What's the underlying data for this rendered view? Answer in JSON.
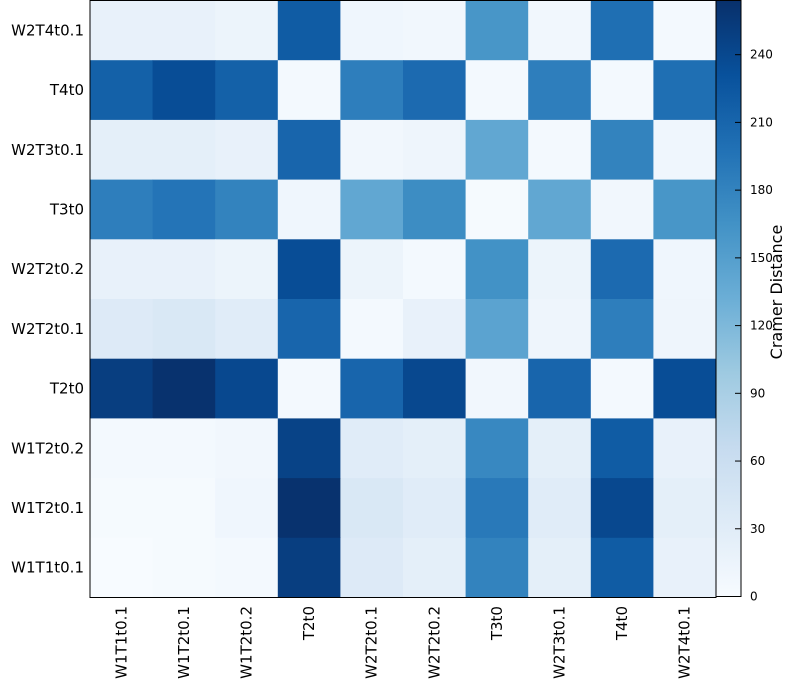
{
  "chart_data": {
    "type": "heatmap",
    "rows": [
      "W2T4t0.1",
      "T4t0",
      "W2T3t0.1",
      "T3t0",
      "W2T2t0.2",
      "W2T2t0.1",
      "T2t0",
      "W1T2t0.2",
      "W1T2t0.1",
      "W1T1t0.1"
    ],
    "columns": [
      "W1T1t0.1",
      "W1T2t0.1",
      "W1T2t0.2",
      "T2t0",
      "W2T2t0.1",
      "W2T2t0.2",
      "T3t0",
      "W2T3t0.1",
      "T4t0",
      "W2T4t0.1"
    ],
    "values": [
      [
        20,
        20,
        15,
        220,
        10,
        8,
        160,
        8,
        200,
        5
      ],
      [
        215,
        235,
        215,
        5,
        185,
        205,
        5,
        185,
        5,
        200
      ],
      [
        25,
        25,
        20,
        210,
        8,
        12,
        140,
        5,
        180,
        10
      ],
      [
        185,
        195,
        180,
        10,
        140,
        170,
        3,
        140,
        8,
        160
      ],
      [
        20,
        20,
        15,
        235,
        15,
        5,
        165,
        15,
        205,
        10
      ],
      [
        35,
        40,
        30,
        210,
        5,
        20,
        145,
        12,
        185,
        12
      ],
      [
        250,
        262,
        240,
        5,
        210,
        240,
        8,
        210,
        5,
        235
      ],
      [
        5,
        5,
        8,
        245,
        30,
        25,
        175,
        25,
        220,
        20
      ],
      [
        3,
        3,
        10,
        262,
        40,
        30,
        190,
        30,
        240,
        25
      ],
      [
        0,
        3,
        5,
        250,
        35,
        25,
        180,
        25,
        220,
        20
      ]
    ],
    "colormap": "Blues",
    "colorbar_label": "Cramer Distance",
    "clim": [
      0,
      264
    ],
    "cticks": [
      0,
      30,
      60,
      90,
      120,
      150,
      180,
      210,
      240
    ]
  }
}
